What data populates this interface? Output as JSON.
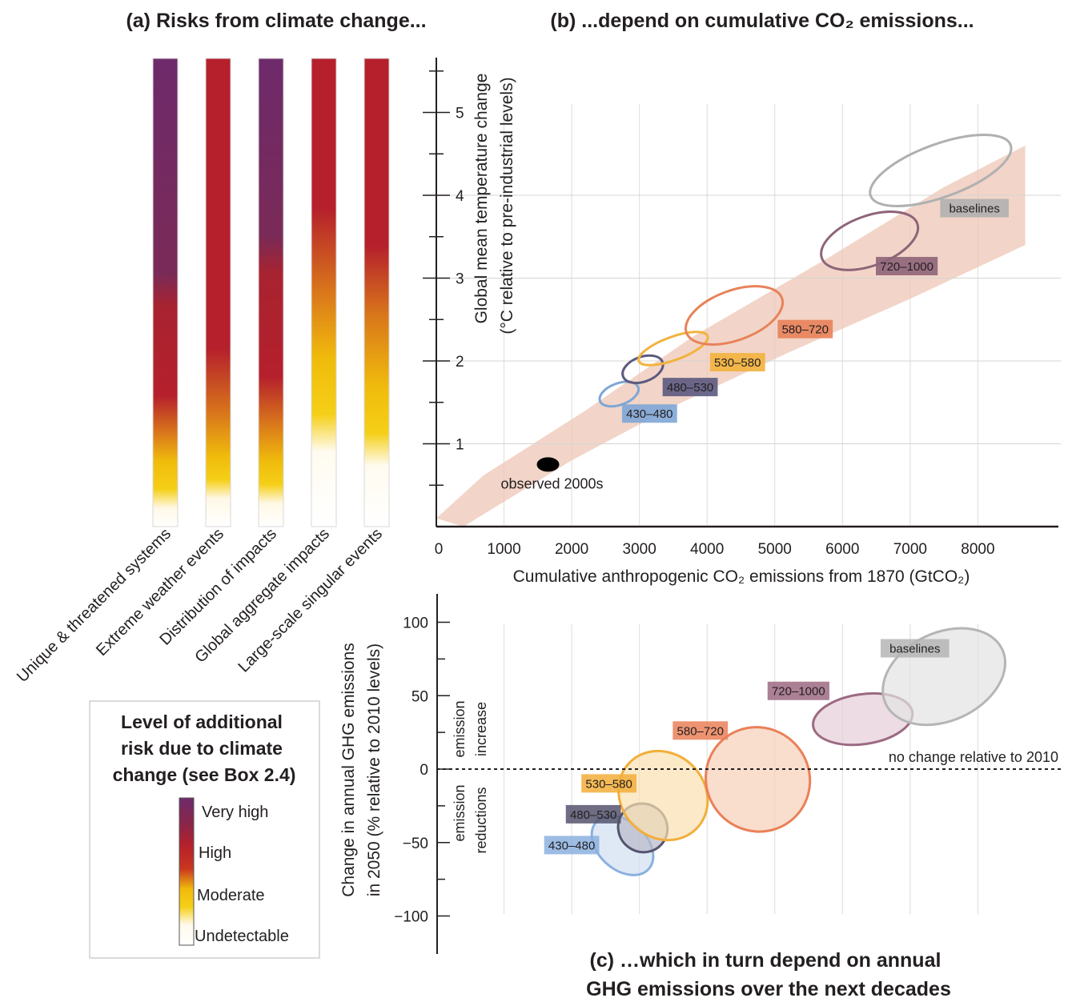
{
  "panel_a": {
    "title": "(a) Risks from climate change...",
    "categories": [
      {
        "label": "Unique & threatened systems",
        "stops": [
          [
            0,
            "#6e2a6b"
          ],
          [
            0.46,
            "#7a2a57"
          ],
          [
            0.53,
            "#a82330"
          ],
          [
            0.72,
            "#b5202c"
          ],
          [
            0.8,
            "#d9771b"
          ],
          [
            0.86,
            "#f0bb0c"
          ],
          [
            0.92,
            "#f5cf17"
          ],
          [
            0.96,
            "#fff8e6"
          ],
          [
            1,
            "#ffffff"
          ]
        ]
      },
      {
        "label": "Extreme weather events",
        "stops": [
          [
            0,
            "#b5202c"
          ],
          [
            0.62,
            "#b5202c"
          ],
          [
            0.76,
            "#d9771b"
          ],
          [
            0.85,
            "#f0bb0c"
          ],
          [
            0.9,
            "#f5cf17"
          ],
          [
            0.94,
            "#fff8e6"
          ],
          [
            1,
            "#ffffff"
          ]
        ]
      },
      {
        "label": "Distribution of impacts",
        "stops": [
          [
            0,
            "#6e2a6b"
          ],
          [
            0.38,
            "#7a2a57"
          ],
          [
            0.46,
            "#a82330"
          ],
          [
            0.68,
            "#b5202c"
          ],
          [
            0.78,
            "#d9771b"
          ],
          [
            0.86,
            "#f0bb0c"
          ],
          [
            0.91,
            "#f5cf17"
          ],
          [
            0.95,
            "#fff8e6"
          ],
          [
            1,
            "#ffffff"
          ]
        ]
      },
      {
        "label": "Global aggregate impacts",
        "stops": [
          [
            0,
            "#b5202c"
          ],
          [
            0.32,
            "#b5202c"
          ],
          [
            0.5,
            "#d9771b"
          ],
          [
            0.64,
            "#f0bb0c"
          ],
          [
            0.76,
            "#f5cf17"
          ],
          [
            0.84,
            "#fffbf0"
          ],
          [
            1,
            "#ffffff"
          ]
        ]
      },
      {
        "label": "Large-scale singular events",
        "stops": [
          [
            0,
            "#b5202c"
          ],
          [
            0.4,
            "#b5202c"
          ],
          [
            0.55,
            "#d9771b"
          ],
          [
            0.7,
            "#f0bb0c"
          ],
          [
            0.8,
            "#f5cf17"
          ],
          [
            0.87,
            "#fffbf0"
          ],
          [
            1,
            "#ffffff"
          ]
        ]
      }
    ],
    "legend": {
      "title_lines": [
        "Level of additional",
        "risk due to climate",
        "change (see Box 2.4)"
      ],
      "levels": [
        "Very high",
        "High",
        "Moderate",
        "Undetectable"
      ]
    }
  },
  "panel_b": {
    "title": "(b) ...depend on cumulative CO₂ emissions...",
    "xlabel": "Cumulative anthropogenic CO₂ emissions from 1870 (GtCO₂)",
    "ylabel_lines": [
      "Global mean temperature change",
      "(°C relative to pre-industrial levels)"
    ],
    "observed_label": "observed 2000s"
  },
  "panel_c": {
    "title_lines": [
      "(c) …which in turn depend on annual",
      "GHG emissions over the next decades"
    ],
    "ylabel_lines": [
      "Change in annual GHG emissions",
      "in 2050 (% relative to 2010 levels)"
    ],
    "increase_label_lines": [
      "emission",
      "increase"
    ],
    "reduction_label_lines": [
      "emission",
      "reductions"
    ],
    "no_change_label": "no change relative to 2010"
  },
  "chart_data": [
    {
      "type": "scatter",
      "title": "(b) ...depend on cumulative CO₂ emissions...",
      "xlabel": "Cumulative anthropogenic CO₂ emissions from 1870 (GtCO₂)",
      "ylabel": "Global mean temperature change (°C relative to pre-industrial levels)",
      "xlim": [
        0,
        9000
      ],
      "ylim": [
        0,
        5.5
      ],
      "x_ticks": [
        0,
        1000,
        2000,
        3000,
        4000,
        5000,
        6000,
        7000,
        8000
      ],
      "y_ticks": [
        1,
        2,
        3,
        4,
        5
      ],
      "grid": true,
      "observed": {
        "label": "observed 2000s",
        "x": 1650,
        "y": 0.75
      },
      "series": [
        {
          "name": "430–480",
          "color": "#7ea6d6",
          "fill": "none",
          "cx": 2700,
          "cy": 1.6,
          "rx": 300,
          "ry": 0.13
        },
        {
          "name": "480–530",
          "color": "#5c5a80",
          "fill": "none",
          "cx": 3050,
          "cy": 1.9,
          "rx": 310,
          "ry": 0.15
        },
        {
          "name": "530–580",
          "color": "#f2b33d",
          "fill": "none",
          "cx": 3500,
          "cy": 2.15,
          "rx": 540,
          "ry": 0.14
        },
        {
          "name": "580–720",
          "color": "#e8825a",
          "fill": "none",
          "cx": 4400,
          "cy": 2.55,
          "rx": 750,
          "ry": 0.3
        },
        {
          "name": "720–1000",
          "color": "#8e6479",
          "fill": "none",
          "cx": 6400,
          "cy": 3.45,
          "rx": 750,
          "ry": 0.3
        },
        {
          "name": "baselines",
          "color": "#b0b0b0",
          "fill": "none",
          "cx": 7450,
          "cy": 4.3,
          "rx": 1100,
          "ry": 0.32
        }
      ]
    },
    {
      "type": "scatter",
      "title": "(c) …which in turn depend on annual GHG emissions over the next decades",
      "ylabel": "Change in annual GHG emissions in 2050 (% relative to 2010 levels)",
      "xlim": [
        0,
        9000
      ],
      "ylim": [
        -110,
        110
      ],
      "y_ticks": [
        100,
        50,
        0,
        -50,
        -100
      ],
      "reference_line": {
        "y": 0,
        "label": "no change relative to 2010"
      },
      "series": [
        {
          "name": "430–480",
          "color": "#8bb0df",
          "fill": "#d2e0f2",
          "cx": 2750,
          "cy": -52,
          "rx": 330,
          "ry": 24
        },
        {
          "name": "480–530",
          "color": "#55546f",
          "fill": "#b8b8c8",
          "cx": 3050,
          "cy": -40,
          "rx": 160,
          "ry": 17
        },
        {
          "name": "530–580",
          "color": "#f2ae3a",
          "fill": "#f9dfb0",
          "cx": 3350,
          "cy": -18,
          "rx": 620,
          "ry": 32
        },
        {
          "name": "580–720",
          "color": "#ea8058",
          "fill": "#f7cfb8",
          "cx": 4750,
          "cy": -7,
          "rx": 760,
          "ry": 36
        },
        {
          "name": "720–1000",
          "color": "#9c6a82",
          "fill": "#e5cdd8",
          "cx": 6300,
          "cy": 34,
          "rx": 740,
          "ry": 17
        },
        {
          "name": "baselines",
          "color": "#b5b5b5",
          "fill": "#e3e3e3",
          "cx": 7500,
          "cy": 63,
          "rx": 950,
          "ry": 30
        }
      ]
    }
  ]
}
